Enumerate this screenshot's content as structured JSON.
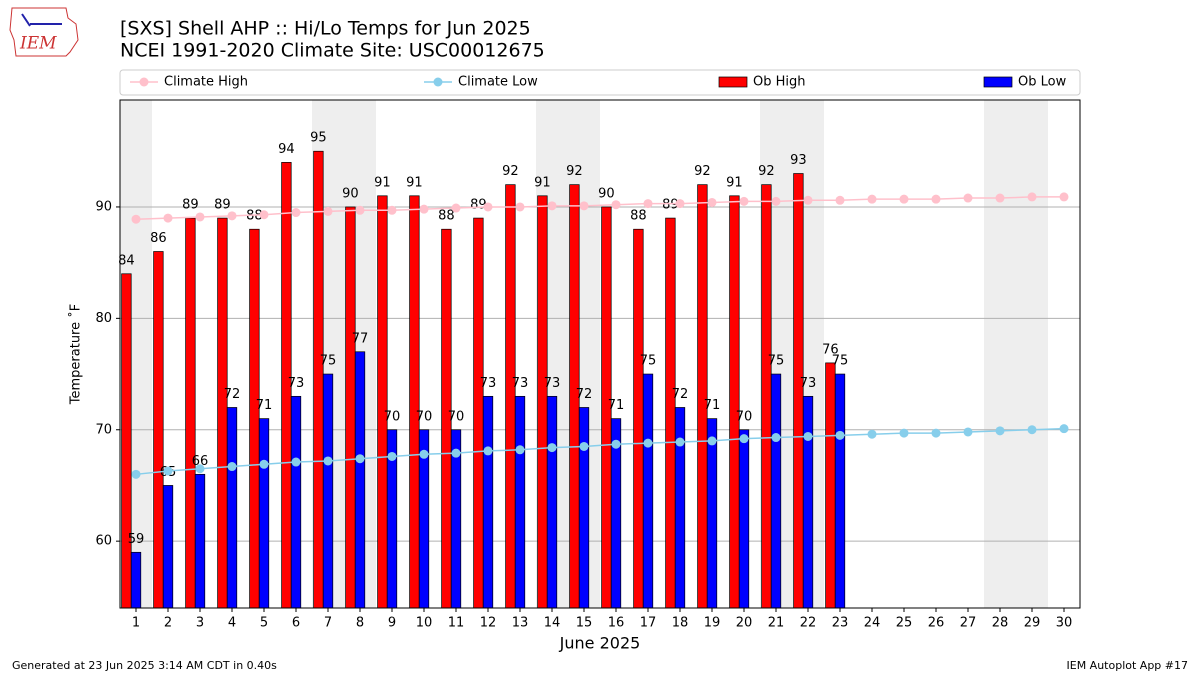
{
  "logo_text": "IEM",
  "footer_left": "Generated at 23 Jun 2025 3:14 AM CDT in 0.40s",
  "footer_right": "IEM Autoplot App #17",
  "chart_data": {
    "type": "bar",
    "title": "[SXS] Shell AHP :: Hi/Lo Temps for Jun 2025",
    "subtitle": "NCEI 1991-2020 Climate Site: USC00012675",
    "xlabel": "June 2025",
    "ylabel": "Temperature ˚F",
    "x": [
      1,
      2,
      3,
      4,
      5,
      6,
      7,
      8,
      9,
      10,
      11,
      12,
      13,
      14,
      15,
      16,
      17,
      18,
      19,
      20,
      21,
      22,
      23,
      24,
      25,
      26,
      27,
      28,
      29,
      30
    ],
    "xlim": [
      0.5,
      30.5
    ],
    "xticks": [
      1,
      2,
      3,
      4,
      5,
      6,
      7,
      8,
      9,
      10,
      11,
      12,
      13,
      14,
      15,
      16,
      17,
      18,
      19,
      20,
      21,
      22,
      23,
      24,
      25,
      26,
      27,
      28,
      29,
      30
    ],
    "ylim": [
      54,
      99.6
    ],
    "yticks": [
      60,
      70,
      80,
      90
    ],
    "grid": "y",
    "shaded_days": [
      1,
      7,
      8,
      14,
      15,
      21,
      22,
      28,
      29
    ],
    "shade_color": "#eeeeee",
    "series": [
      {
        "name": "Climate High",
        "type": "line",
        "color": "#ffc0cb",
        "values": [
          88.9,
          89.0,
          89.1,
          89.2,
          89.3,
          89.5,
          89.6,
          89.7,
          89.7,
          89.8,
          89.9,
          90.0,
          90.0,
          90.1,
          90.1,
          90.2,
          90.3,
          90.3,
          90.4,
          90.5,
          90.5,
          90.6,
          90.6,
          90.7,
          90.7,
          90.7,
          90.8,
          90.8,
          90.9,
          90.9
        ]
      },
      {
        "name": "Climate Low",
        "type": "line",
        "color": "#87ceeb",
        "values": [
          66.0,
          66.3,
          66.5,
          66.7,
          66.9,
          67.1,
          67.2,
          67.4,
          67.6,
          67.8,
          67.9,
          68.1,
          68.2,
          68.4,
          68.5,
          68.7,
          68.8,
          68.9,
          69.0,
          69.2,
          69.3,
          69.4,
          69.5,
          69.6,
          69.7,
          69.7,
          69.8,
          69.9,
          70.0,
          70.1
        ]
      },
      {
        "name": "Ob High",
        "type": "bar",
        "color": "#ff0000",
        "values": [
          84,
          86,
          89,
          89,
          88,
          94,
          95,
          90,
          91,
          91,
          88,
          89,
          92,
          91,
          92,
          90,
          88,
          89,
          92,
          91,
          92,
          93,
          76,
          null,
          null,
          null,
          null,
          null,
          null,
          null
        ]
      },
      {
        "name": "Ob Low",
        "type": "bar",
        "color": "#0000ff",
        "values": [
          59,
          65,
          66,
          72,
          71,
          73,
          75,
          77,
          70,
          70,
          70,
          73,
          73,
          73,
          72,
          71,
          75,
          72,
          71,
          70,
          75,
          73,
          75,
          null,
          null,
          null,
          null,
          null,
          null,
          null
        ]
      }
    ]
  }
}
